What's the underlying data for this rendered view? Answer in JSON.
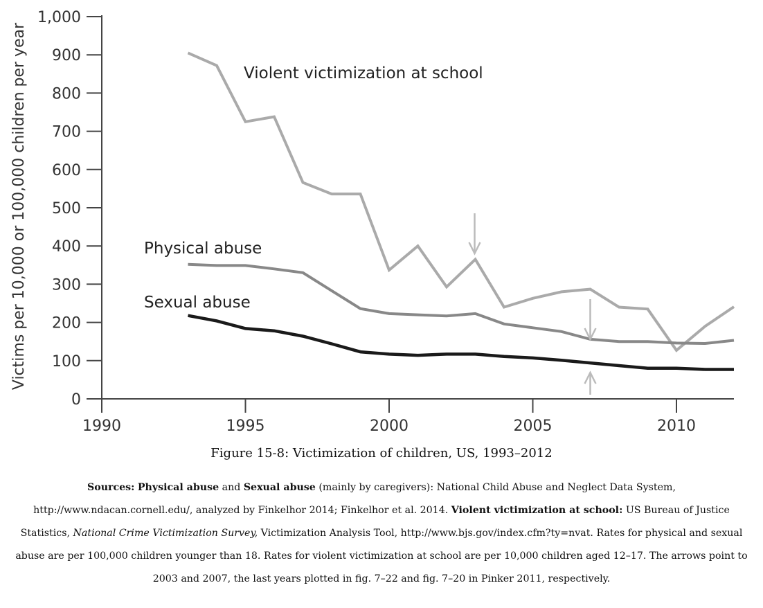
{
  "chart_data": {
    "type": "line",
    "ylabel": "Victims per 10,000 or 100,000 children per year",
    "xlim": [
      1990,
      2012
    ],
    "ylim": [
      0,
      1000
    ],
    "xticks": [
      1990,
      1995,
      2000,
      2005,
      2010
    ],
    "xtick_labels": [
      "1990",
      "1995",
      "2000",
      "2005",
      "2010"
    ],
    "yticks": [
      0,
      100,
      200,
      300,
      400,
      500,
      600,
      700,
      800,
      900,
      1000
    ],
    "ytick_labels": [
      "0",
      "100",
      "200",
      "300",
      "400",
      "500",
      "600",
      "700",
      "800",
      "900",
      "1,000"
    ],
    "series": [
      {
        "name": "Violent victimization at school",
        "color": "#aaaaaa",
        "x": [
          1993,
          1994,
          1995,
          1996,
          1997,
          1998,
          1999,
          2000,
          2001,
          2002,
          2003,
          2004,
          2005,
          2006,
          2007,
          2008,
          2009,
          2010,
          2011,
          2012
        ],
        "values": [
          905,
          872,
          725,
          738,
          566,
          536,
          536,
          337,
          400,
          293,
          365,
          240,
          263,
          280,
          287,
          240,
          235,
          127,
          190,
          241
        ]
      },
      {
        "name": "Physical abuse",
        "color": "#888888",
        "x": [
          1993,
          1994,
          1995,
          1996,
          1997,
          1998,
          1999,
          2000,
          2001,
          2002,
          2003,
          2004,
          2005,
          2006,
          2007,
          2008,
          2009,
          2010,
          2011,
          2012
        ],
        "values": [
          352,
          349,
          349,
          340,
          330,
          283,
          236,
          223,
          220,
          217,
          223,
          196,
          186,
          176,
          156,
          150,
          150,
          146,
          145,
          153
        ]
      },
      {
        "name": "Sexual abuse",
        "color": "#1a1a1a",
        "x": [
          1993,
          1994,
          1995,
          1996,
          1997,
          1998,
          1999,
          2000,
          2001,
          2002,
          2003,
          2004,
          2005,
          2006,
          2007,
          2008,
          2009,
          2010,
          2011,
          2012
        ],
        "values": [
          218,
          204,
          184,
          178,
          164,
          144,
          123,
          117,
          114,
          117,
          117,
          111,
          107,
          101,
          94,
          87,
          80,
          80,
          77,
          77
        ]
      }
    ],
    "annotations": [
      {
        "type": "arrow-down",
        "x": 2003,
        "note": "points to 2003"
      },
      {
        "type": "arrow-down",
        "x": 2007,
        "note": "points to 2007"
      },
      {
        "type": "arrow-up",
        "x": 2007,
        "note": "points to 2007"
      }
    ]
  },
  "caption": "Figure 15-8: Victimization of children, US, 1993–2012",
  "sources": {
    "label": "Sources:",
    "physical": "Physical abuse",
    "and": " and ",
    "sexual": "Sexual abuse",
    "text1": " (mainly by caregivers): National Child Abuse and Neglect Data System, http://www.ndacan.cornell.edu/, analyzed by Finkelhor 2014; Finkelhor et al. 2014. ",
    "violent": "Violent victimization at school:",
    "text2": " US Bureau of Justice Statistics, ",
    "survey": "National Crime Victimization Survey,",
    "text3": " Victimization Analysis Tool, http://www.bjs.gov/index.cfm?ty=nvat. Rates for physical and sexual abuse are per 100,000 children younger than 18. Rates for violent victimization at school are per 10,000 children aged 12–17. The arrows point to 2003 and 2007, the last years plotted in fig. 7–22 and fig. 7–20 in Pinker 2011, respectively."
  }
}
